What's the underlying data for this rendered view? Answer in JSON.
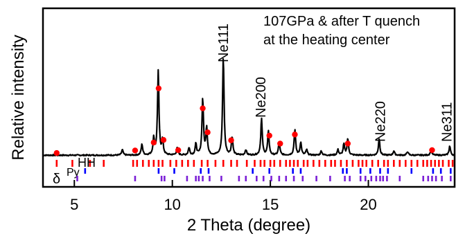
{
  "chart_data": {
    "type": "line",
    "title": "",
    "annotation_lines": [
      "107GPa & after T quench",
      "at the heating center"
    ],
    "xlabel": "2 Theta (degree)",
    "ylabel": "Relative intensity",
    "xlim": [
      3.4,
      24.4
    ],
    "x_ticks": [
      {
        "value": 5,
        "label": "5"
      },
      {
        "value": 10,
        "label": "10"
      },
      {
        "value": 15,
        "label": "15"
      },
      {
        "value": 20,
        "label": "20"
      }
    ],
    "grid": false,
    "legend": "none",
    "series": [
      {
        "type": "pattern",
        "color": "#000000",
        "baseline": 0.9,
        "peaks": [
          {
            "x": 7.45,
            "h": 1.5
          },
          {
            "x": 8.45,
            "h": 3
          },
          {
            "x": 9.05,
            "h": 4.5
          },
          {
            "x": 9.28,
            "h": 23
          },
          {
            "x": 9.5,
            "h": 4
          },
          {
            "x": 10.25,
            "h": 2
          },
          {
            "x": 10.85,
            "h": 2
          },
          {
            "x": 11.2,
            "h": 3
          },
          {
            "x": 11.55,
            "h": 15.5
          },
          {
            "x": 11.75,
            "h": 7.5
          },
          {
            "x": 12.6,
            "h": 27
          },
          {
            "x": 13.05,
            "h": 5
          },
          {
            "x": 13.75,
            "h": 1.5
          },
          {
            "x": 14.55,
            "h": 10
          },
          {
            "x": 14.9,
            "h": 6.5
          },
          {
            "x": 15.45,
            "h": 3.5
          },
          {
            "x": 16.25,
            "h": 7
          },
          {
            "x": 16.55,
            "h": 3.5
          },
          {
            "x": 16.85,
            "h": 1.5
          },
          {
            "x": 17.6,
            "h": 1.2
          },
          {
            "x": 18.45,
            "h": 1.5
          },
          {
            "x": 18.75,
            "h": 3
          },
          {
            "x": 18.95,
            "h": 4.5
          },
          {
            "x": 20.55,
            "h": 4.5
          },
          {
            "x": 21.3,
            "h": 1.2
          },
          {
            "x": 22,
            "h": 1
          },
          {
            "x": 23.2,
            "h": 1.5
          },
          {
            "x": 24.15,
            "h": 2.5
          }
        ]
      }
    ],
    "peak_labels": [
      {
        "text": "Ne111",
        "x": 12.6
      },
      {
        "text": "Ne200",
        "x": 14.5
      },
      {
        "text": "Ne220",
        "x": 20.6
      },
      {
        "text": "Ne311",
        "x": 24.0
      }
    ],
    "markers": {
      "color": "#ff0000",
      "points": [
        {
          "x": 4.1,
          "y": 1.5
        },
        {
          "x": 8.1,
          "y": 2.2
        },
        {
          "x": 9.05,
          "y": 4.4
        },
        {
          "x": 9.3,
          "y": 19.3
        },
        {
          "x": 9.55,
          "y": 5.1
        },
        {
          "x": 10.3,
          "y": 2.3
        },
        {
          "x": 11.55,
          "y": 13.8
        },
        {
          "x": 11.8,
          "y": 7.2
        },
        {
          "x": 13.0,
          "y": 5.0
        },
        {
          "x": 14.95,
          "y": 6.3
        },
        {
          "x": 15.5,
          "y": 4.1
        },
        {
          "x": 16.25,
          "y": 6.6
        },
        {
          "x": 18.95,
          "y": 4.1
        },
        {
          "x": 23.25,
          "y": 2.3
        }
      ]
    },
    "tick_rows": [
      {
        "label": "HH",
        "color": "#ff0000",
        "positions": [
          4.1,
          4.9,
          5.8,
          6.5,
          8.0,
          8.2,
          8.5,
          8.8,
          9.05,
          9.3,
          9.5,
          9.9,
          10.2,
          10.5,
          10.8,
          11.1,
          11.5,
          11.8,
          12.2,
          12.6,
          13.0,
          13.3,
          13.8,
          14.2,
          14.5,
          14.7,
          15.0,
          15.2,
          15.5,
          15.8,
          16.0,
          16.2,
          16.4,
          16.7,
          16.9,
          17.2,
          17.5,
          17.8,
          18.1,
          18.3,
          18.6,
          18.9,
          19.2,
          19.5,
          19.7,
          19.9,
          20.2,
          20.5,
          20.8,
          21.0,
          21.3,
          21.6,
          21.9,
          22.2,
          22.5,
          22.8,
          23.0,
          23.2,
          23.4,
          23.6,
          23.8,
          24.1,
          24.3
        ]
      },
      {
        "label": "Py",
        "color": "#0000ff",
        "positions": [
          5.55,
          9.3,
          10.1,
          11.45,
          11.85,
          14.1,
          14.95,
          16.15,
          16.55,
          18.7,
          18.9,
          19.6,
          20.1,
          20.6,
          21.0,
          22.2,
          23.3,
          23.7,
          24.2
        ]
      },
      {
        "label": "δ",
        "color": "#7b1fd6",
        "positions": [
          5.15,
          8.1,
          9.45,
          9.6,
          10.75,
          11.2,
          11.35,
          11.55,
          11.9,
          12.5,
          13.4,
          13.75,
          14.3,
          14.65,
          15.05,
          15.45,
          15.8,
          16.2,
          16.65,
          17.35,
          18.05,
          18.8,
          19.05,
          19.6,
          19.85,
          20.15,
          20.4,
          20.6,
          20.75,
          20.95,
          21.6,
          22.8,
          23.05,
          23.25,
          23.45,
          23.75,
          24.2
        ]
      }
    ]
  }
}
